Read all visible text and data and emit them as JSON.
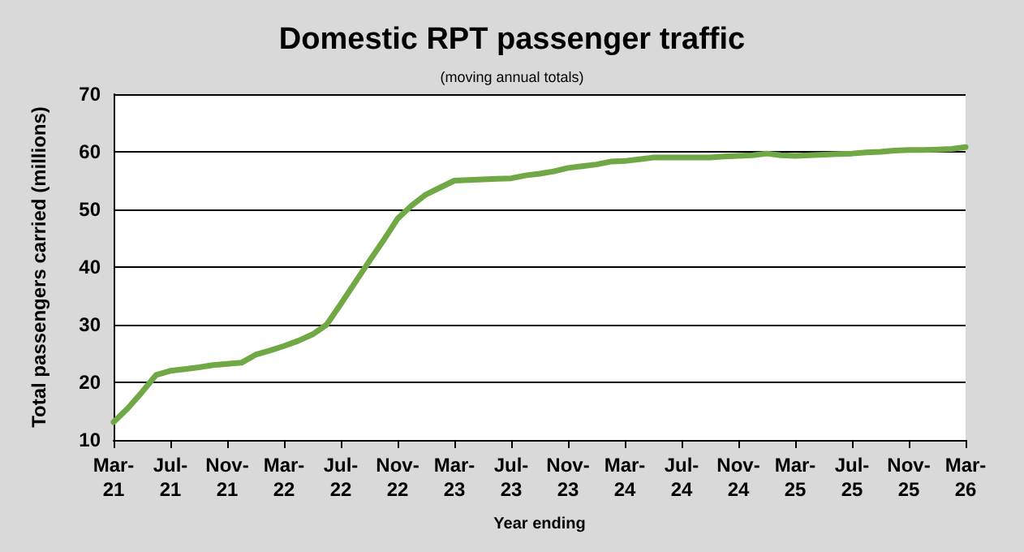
{
  "chart_data": {
    "type": "line",
    "title": "Domestic RPT passenger traffic",
    "subtitle": "(moving annual totals)",
    "xlabel": "Year ending",
    "ylabel": "Total passengers carried (millions)",
    "categories": [
      "Mar-21",
      null,
      null,
      null,
      "Jul-21",
      null,
      null,
      null,
      "Nov-21",
      null,
      null,
      null,
      "Mar-22",
      null,
      null,
      null,
      "Jul-22",
      null,
      null,
      null,
      "Nov-22",
      null,
      null,
      null,
      "Mar-23",
      null,
      null,
      null,
      "Jul-23",
      null,
      null,
      null,
      "Nov-23",
      null,
      null,
      null,
      "Mar-24",
      null,
      null,
      null,
      "Jul-24",
      null,
      null,
      null,
      "Nov-24",
      null,
      null,
      null,
      "Mar-25",
      null,
      null,
      null,
      "Jul-25",
      null,
      null,
      null,
      "Nov-25",
      null,
      null,
      null,
      "Mar-26"
    ],
    "series": [
      {
        "color": "#70a845",
        "values": [
          13.1,
          15.5,
          18.3,
          21.3,
          22.0,
          22.3,
          22.6,
          23.0,
          23.2,
          23.4,
          24.8,
          25.5,
          26.3,
          27.2,
          28.3,
          30.0,
          33.6,
          37.3,
          41.0,
          44.6,
          48.4,
          50.7,
          52.6,
          53.8,
          55.0,
          55.1,
          55.2,
          55.3,
          55.4,
          55.9,
          56.2,
          56.6,
          57.2,
          57.5,
          57.8,
          58.3,
          58.4,
          58.7,
          59.0,
          59.0,
          59.0,
          59.0,
          59.0,
          59.2,
          59.3,
          59.4,
          59.7,
          59.4,
          59.3,
          59.4,
          59.5,
          59.6,
          59.7,
          59.9,
          60.0,
          60.2,
          60.3,
          60.3,
          60.4,
          60.5,
          60.8
        ]
      }
    ],
    "ylim": [
      10,
      70
    ],
    "yticks": [
      10,
      20,
      30,
      40,
      50,
      60,
      70
    ],
    "grid": "y",
    "marker": "none",
    "line_style": "solid"
  }
}
